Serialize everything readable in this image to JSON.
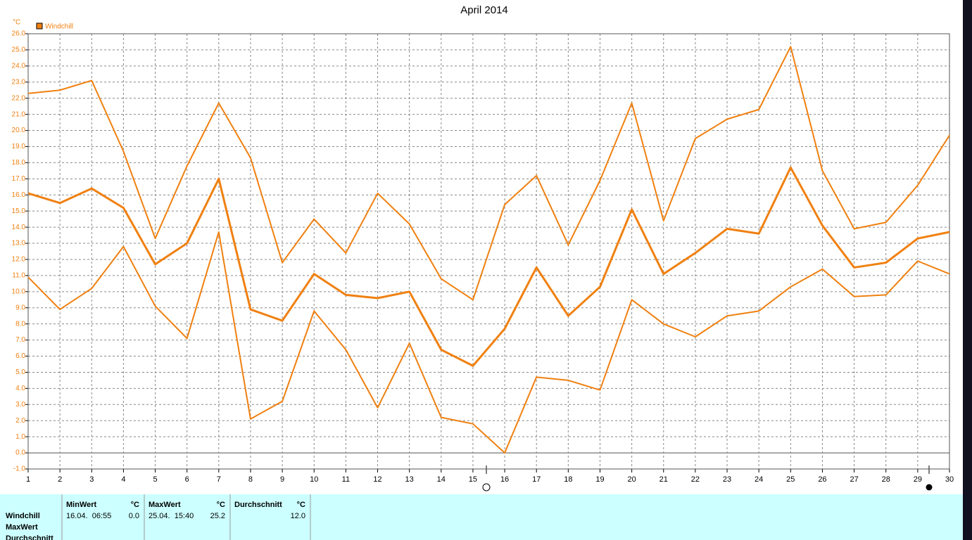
{
  "chart_data": {
    "type": "line",
    "title": "April 2014",
    "y_unit": "°C",
    "x": [
      1,
      2,
      3,
      4,
      5,
      6,
      7,
      8,
      9,
      10,
      11,
      12,
      13,
      14,
      15,
      16,
      17,
      18,
      19,
      20,
      21,
      22,
      23,
      24,
      25,
      26,
      27,
      28,
      29,
      30
    ],
    "xlim": [
      1,
      30
    ],
    "xticks": [
      1,
      2,
      3,
      4,
      5,
      6,
      7,
      8,
      9,
      10,
      11,
      12,
      13,
      14,
      15,
      16,
      17,
      18,
      19,
      20,
      21,
      22,
      23,
      24,
      25,
      26,
      27,
      28,
      29,
      30
    ],
    "ylim": [
      -1,
      26
    ],
    "yticks": [
      {
        "value": -1,
        "label": "-1.0"
      },
      {
        "value": 0,
        "label": "0.0"
      },
      {
        "value": 1,
        "label": "1.0"
      },
      {
        "value": 2,
        "label": "2.0"
      },
      {
        "value": 3,
        "label": "3.0"
      },
      {
        "value": 4,
        "label": "4.0"
      },
      {
        "value": 5,
        "label": "5.0"
      },
      {
        "value": 6,
        "label": "6.0"
      },
      {
        "value": 7,
        "label": "7.0"
      },
      {
        "value": 8,
        "label": "8.0"
      },
      {
        "value": 9,
        "label": "9.0"
      },
      {
        "value": 10,
        "label": "10.0"
      },
      {
        "value": 11,
        "label": "11.0"
      },
      {
        "value": 12,
        "label": "12.0"
      },
      {
        "value": 13,
        "label": "13.0"
      },
      {
        "value": 14,
        "label": "14.0"
      },
      {
        "value": 15,
        "label": "15.0"
      },
      {
        "value": 16,
        "label": "16.0"
      },
      {
        "value": 17,
        "label": "17.0"
      },
      {
        "value": 18,
        "label": "18.0"
      },
      {
        "value": 19,
        "label": "19.0"
      },
      {
        "value": 20,
        "label": "20.0"
      },
      {
        "value": 21,
        "label": "21.0"
      },
      {
        "value": 22,
        "label": "22.0"
      },
      {
        "value": 23,
        "label": "23.0"
      },
      {
        "value": 24,
        "label": "24.0"
      },
      {
        "value": 25,
        "label": "25.0"
      },
      {
        "value": 26,
        "label": "26.0"
      }
    ],
    "grid": true,
    "series": [
      {
        "name": "Windchill",
        "color": "#f08010",
        "values": [
          16.1,
          15.5,
          16.4,
          15.2,
          11.7,
          13.0,
          17.0,
          8.9,
          8.2,
          11.1,
          9.8,
          9.6,
          10.0,
          6.4,
          5.4,
          7.7,
          11.5,
          8.5,
          10.3,
          15.1,
          11.1,
          12.4,
          13.9,
          13.6,
          17.7,
          14.1,
          11.5,
          11.8,
          13.3,
          13.7
        ]
      },
      {
        "color": "#f08010",
        "values": [
          22.3,
          22.5,
          23.1,
          18.7,
          13.3,
          17.8,
          21.7,
          18.3,
          11.8,
          14.5,
          12.4,
          16.1,
          14.2,
          10.8,
          9.5,
          15.4,
          17.2,
          12.9,
          16.9,
          21.7,
          14.4,
          19.5,
          20.7,
          21.3,
          25.2,
          17.5,
          13.9,
          14.3,
          16.6,
          19.7
        ]
      },
      {
        "color": "#f08010",
        "values": [
          10.9,
          8.9,
          10.2,
          12.8,
          9.1,
          7.1,
          13.7,
          2.1,
          3.2,
          8.8,
          6.4,
          2.8,
          6.8,
          2.2,
          1.8,
          0.0,
          4.7,
          4.5,
          3.9,
          9.5,
          8.0,
          7.2,
          8.5,
          8.8,
          10.3,
          11.4,
          9.7,
          9.8,
          11.9,
          11.1
        ]
      }
    ]
  },
  "panel": {
    "row_labels": [
      "Windchill",
      "MaxWert",
      "Durchschnitt"
    ],
    "columns": [
      {
        "header": "MinWert",
        "unit": "°C",
        "date": "16.04.  06:55",
        "value": "0.0"
      },
      {
        "header": "MaxWert",
        "unit": "°C",
        "date": "25.04.  15:40",
        "value": "25.2"
      },
      {
        "header": "Durchschnitt",
        "unit": "°C",
        "value": "12.0"
      }
    ]
  }
}
